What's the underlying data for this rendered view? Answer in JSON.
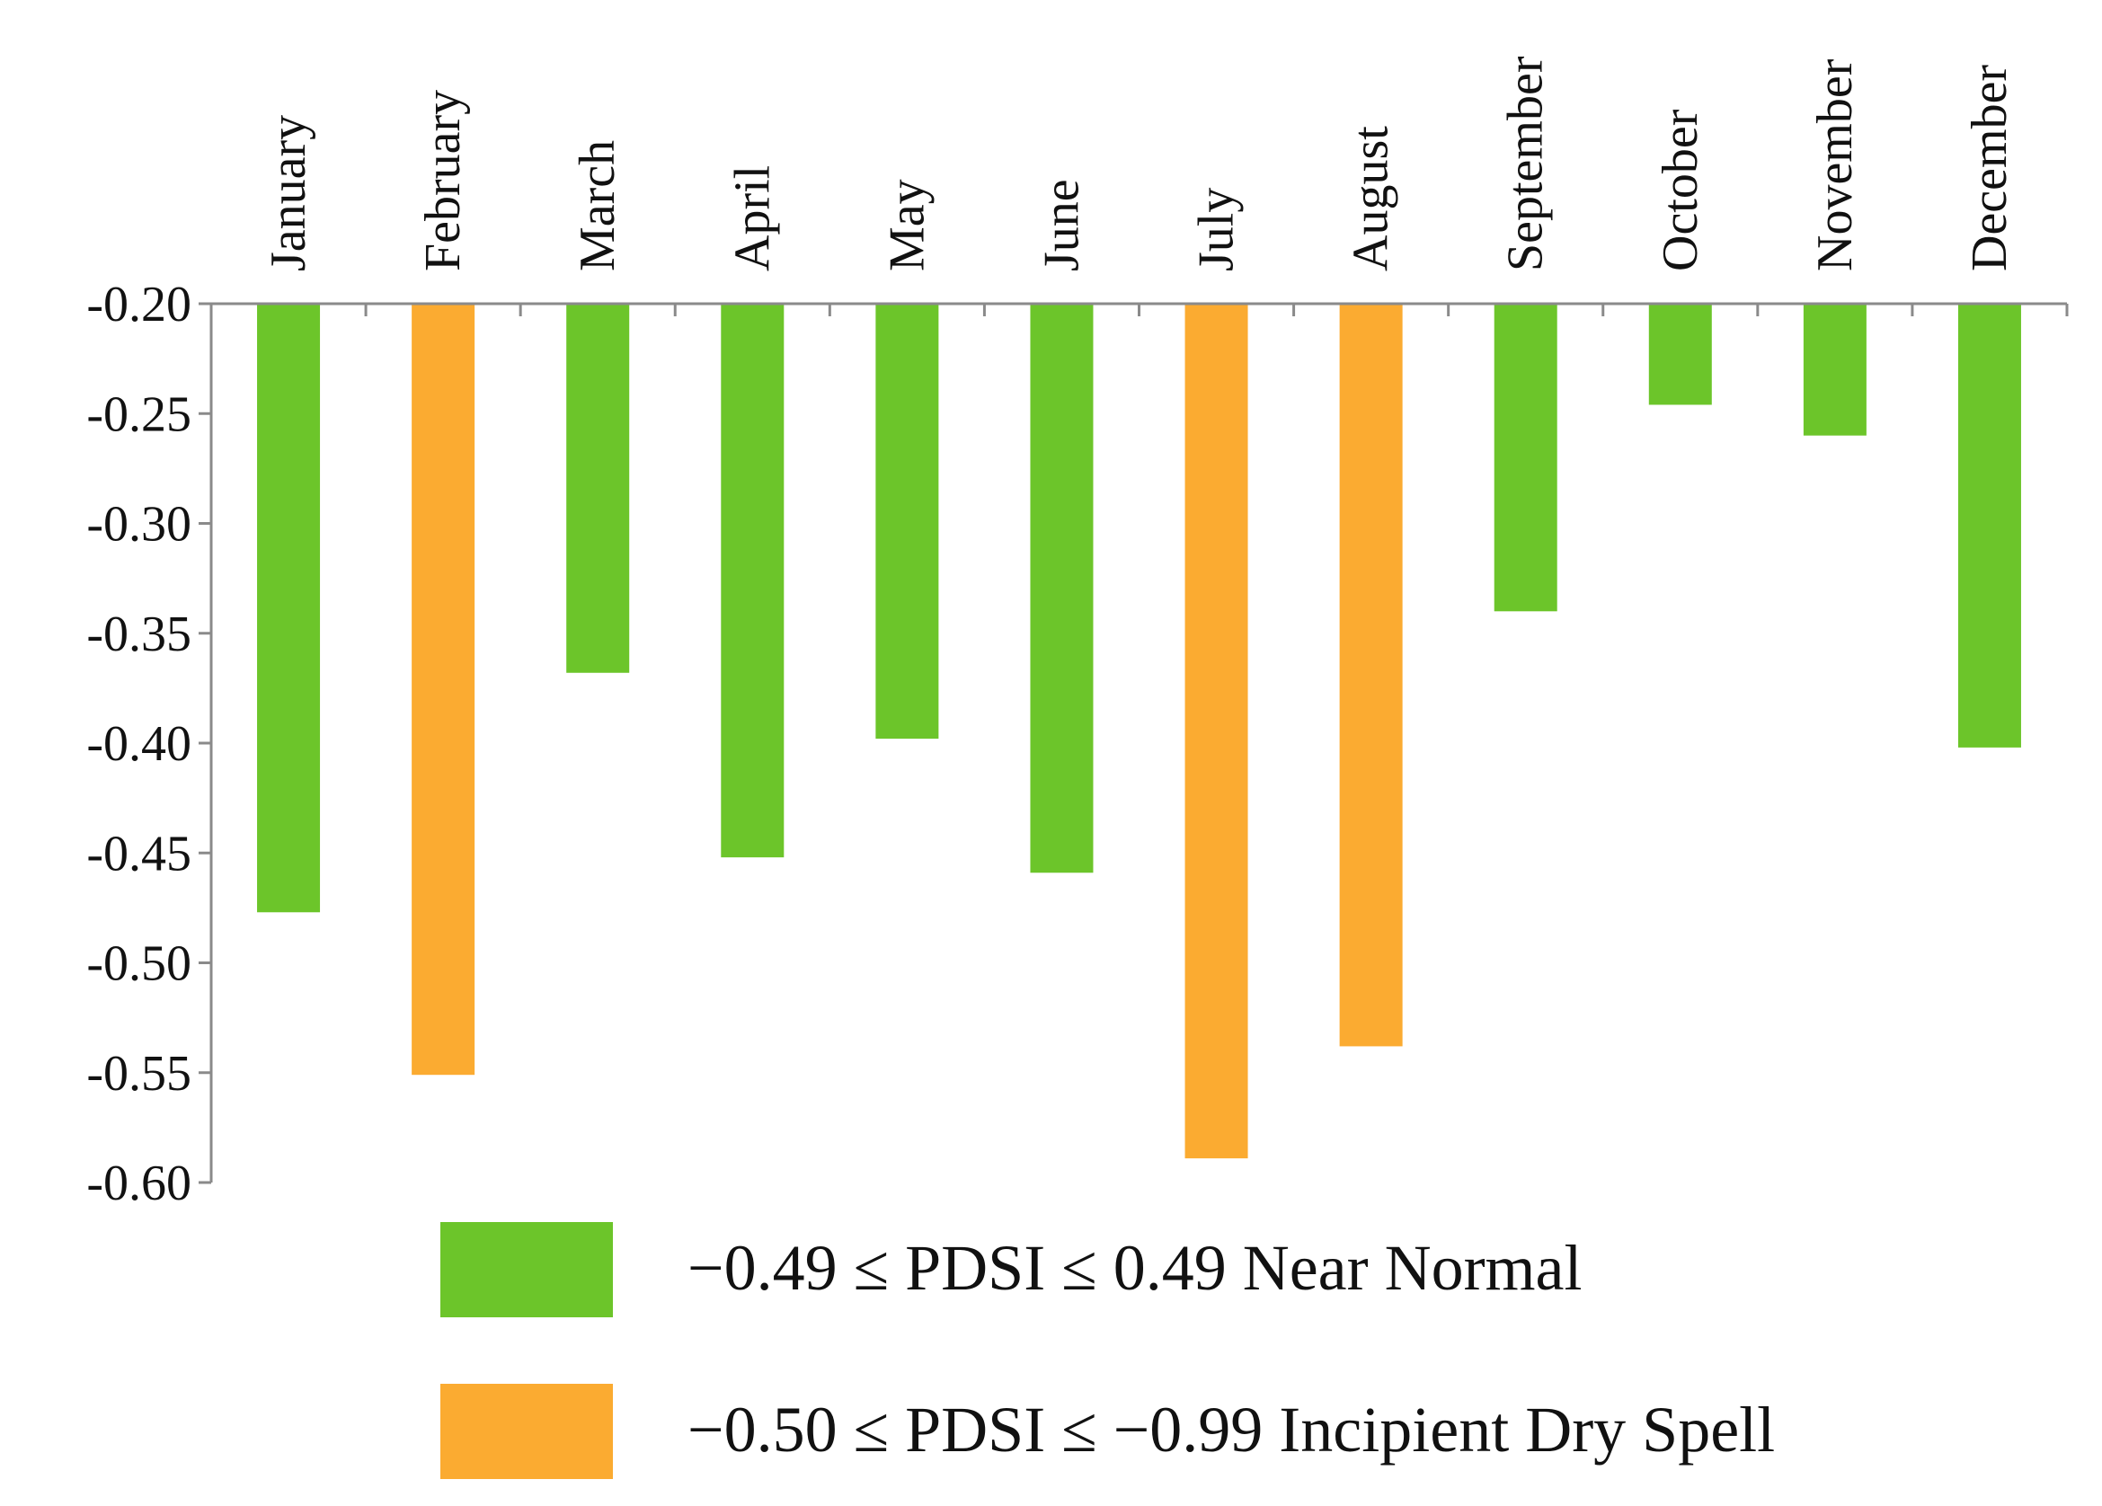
{
  "chart_data": {
    "type": "bar",
    "title": "",
    "xlabel": "",
    "ylabel": "",
    "categories": [
      "January",
      "February",
      "March",
      "April",
      "May",
      "June",
      "July",
      "August",
      "September",
      "October",
      "November",
      "December"
    ],
    "values": [
      -0.477,
      -0.551,
      -0.368,
      -0.452,
      -0.398,
      -0.459,
      -0.589,
      -0.538,
      -0.34,
      -0.246,
      -0.26,
      -0.402
    ],
    "classes": [
      "near_normal",
      "incipient_dry",
      "near_normal",
      "near_normal",
      "near_normal",
      "near_normal",
      "incipient_dry",
      "incipient_dry",
      "near_normal",
      "near_normal",
      "near_normal",
      "near_normal"
    ],
    "ylim": [
      -0.6,
      -0.2
    ],
    "yticks": [
      -0.2,
      -0.25,
      -0.3,
      -0.35,
      -0.4,
      -0.45,
      -0.5,
      -0.55,
      -0.6
    ],
    "ytick_labels": [
      "-0.20",
      "-0.25",
      "-0.30",
      "-0.35",
      "-0.40",
      "-0.45",
      "-0.50",
      "-0.55",
      "-0.60"
    ],
    "grid": false,
    "category_axis_position": "top",
    "legend_position": "bottom",
    "legend": [
      {
        "key": "near_normal",
        "label": "−0.49 ≤ PDSI ≤ 0.49 Near Normal",
        "color": "#6cc52a"
      },
      {
        "key": "incipient_dry",
        "label": "−0.50 ≤ PDSI ≤ −0.99 Incipient Dry Spell",
        "color": "#fbab31"
      }
    ]
  }
}
